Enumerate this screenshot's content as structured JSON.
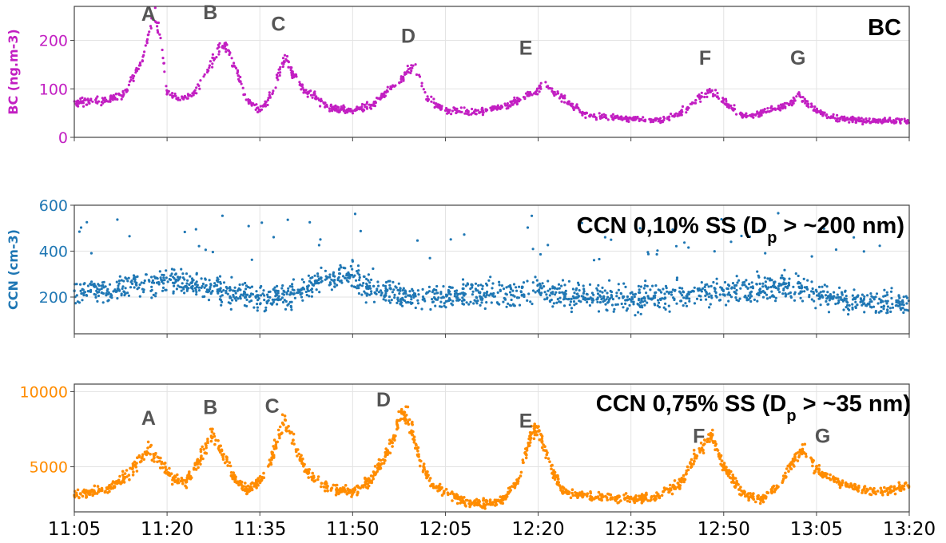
{
  "chart_data": [
    {
      "type": "scatter",
      "panel_label": "BC",
      "ylabel": "BC (ng.m-3)",
      "color": "#c21fc2",
      "ylim": [
        0,
        270
      ],
      "yticks": [
        0,
        100,
        200
      ],
      "xlim": [
        "11:05",
        "13:20"
      ],
      "baseline_points": [
        [
          "11:05",
          72
        ],
        [
          "11:10",
          75
        ],
        [
          "11:13",
          90
        ],
        [
          "11:16",
          160
        ],
        [
          "11:18",
          255
        ],
        [
          "11:19",
          200
        ],
        [
          "11:20",
          95
        ],
        [
          "11:22",
          80
        ],
        [
          "11:24",
          85
        ],
        [
          "11:25",
          100
        ],
        [
          "11:28",
          170
        ],
        [
          "11:29",
          195
        ],
        [
          "11:30",
          175
        ],
        [
          "11:33",
          75
        ],
        [
          "11:35",
          55
        ],
        [
          "11:37",
          90
        ],
        [
          "11:39",
          165
        ],
        [
          "11:40",
          140
        ],
        [
          "11:42",
          100
        ],
        [
          "11:46",
          62
        ],
        [
          "11:50",
          55
        ],
        [
          "11:53",
          65
        ],
        [
          "11:56",
          100
        ],
        [
          "11:59",
          135
        ],
        [
          "12:00",
          150
        ],
        [
          "12:02",
          80
        ],
        [
          "12:05",
          55
        ],
        [
          "12:10",
          52
        ],
        [
          "12:15",
          65
        ],
        [
          "12:19",
          90
        ],
        [
          "12:21",
          108
        ],
        [
          "12:24",
          80
        ],
        [
          "12:28",
          45
        ],
        [
          "12:35",
          38
        ],
        [
          "12:40",
          35
        ],
        [
          "12:43",
          50
        ],
        [
          "12:46",
          82
        ],
        [
          "12:48",
          98
        ],
        [
          "12:50",
          75
        ],
        [
          "12:53",
          45
        ],
        [
          "12:55",
          45
        ],
        [
          "12:58",
          60
        ],
        [
          "13:01",
          70
        ],
        [
          "13:02",
          90
        ],
        [
          "13:04",
          65
        ],
        [
          "13:07",
          42
        ],
        [
          "13:12",
          35
        ],
        [
          "13:18",
          33
        ]
      ],
      "annotations": [
        {
          "text": "A",
          "x": "11:17",
          "y": 240
        },
        {
          "text": "B",
          "x": "11:27",
          "y": 244
        },
        {
          "text": "C",
          "x": "11:38",
          "y": 220
        },
        {
          "text": "D",
          "x": "11:59",
          "y": 195
        },
        {
          "text": "E",
          "x": "12:18",
          "y": 170
        },
        {
          "text": "F",
          "x": "12:47",
          "y": 150
        },
        {
          "text": "G",
          "x": "13:02",
          "y": 150
        }
      ]
    },
    {
      "type": "scatter",
      "panel_label": "CCN 0,10% SS (D",
      "panel_label_sub": "p",
      "panel_label_end": " > ~200 nm)",
      "ylabel": "CCN (cm-3)",
      "color": "#1f77b4",
      "ylim": [
        40,
        600
      ],
      "yticks": [
        200,
        400,
        600
      ],
      "xlim": [
        "11:05",
        "13:20"
      ],
      "baseline_points": [
        [
          "11:05",
          230
        ],
        [
          "11:10",
          225
        ],
        [
          "11:15",
          250
        ],
        [
          "11:20",
          270
        ],
        [
          "11:25",
          250
        ],
        [
          "11:30",
          220
        ],
        [
          "11:35",
          195
        ],
        [
          "11:40",
          210
        ],
        [
          "11:45",
          270
        ],
        [
          "11:50",
          300
        ],
        [
          "11:52",
          250
        ],
        [
          "11:58",
          210
        ],
        [
          "12:05",
          205
        ],
        [
          "12:10",
          210
        ],
        [
          "12:15",
          210
        ],
        [
          "12:20",
          230
        ],
        [
          "12:25",
          210
        ],
        [
          "12:30",
          200
        ],
        [
          "12:35",
          190
        ],
        [
          "12:40",
          195
        ],
        [
          "12:45",
          215
        ],
        [
          "12:50",
          225
        ],
        [
          "12:55",
          235
        ],
        [
          "13:00",
          250
        ],
        [
          "13:05",
          215
        ],
        [
          "13:10",
          185
        ],
        [
          "13:15",
          180
        ],
        [
          "13:20",
          170
        ]
      ]
    },
    {
      "type": "scatter",
      "panel_label": "CCN 0,75% SS (D",
      "panel_label_sub": "p",
      "panel_label_end": " > ~35 nm)",
      "ylabel": "",
      "color": "#ff8c00",
      "ylim": [
        2000,
        10500
      ],
      "yticks": [
        5000,
        10000
      ],
      "xlim": [
        "11:05",
        "13:20"
      ],
      "baseline_points": [
        [
          "11:05",
          3200
        ],
        [
          "11:10",
          3400
        ],
        [
          "11:13",
          4200
        ],
        [
          "11:16",
          5600
        ],
        [
          "11:17",
          6300
        ],
        [
          "11:19",
          5200
        ],
        [
          "11:21",
          4200
        ],
        [
          "11:23",
          4000
        ],
        [
          "11:25",
          5200
        ],
        [
          "11:27",
          7200
        ],
        [
          "11:29",
          5800
        ],
        [
          "11:31",
          4200
        ],
        [
          "11:33",
          3400
        ],
        [
          "11:36",
          4500
        ],
        [
          "11:38",
          7000
        ],
        [
          "11:39",
          8200
        ],
        [
          "11:41",
          6000
        ],
        [
          "11:43",
          4500
        ],
        [
          "11:46",
          3600
        ],
        [
          "11:50",
          3300
        ],
        [
          "11:53",
          4200
        ],
        [
          "11:56",
          6200
        ],
        [
          "11:58",
          8800
        ],
        [
          "11:59",
          8200
        ],
        [
          "12:01",
          5200
        ],
        [
          "12:03",
          3800
        ],
        [
          "12:07",
          2900
        ],
        [
          "12:10",
          2500
        ],
        [
          "12:14",
          2700
        ],
        [
          "12:17",
          4200
        ],
        [
          "12:19",
          7500
        ],
        [
          "12:20",
          7600
        ],
        [
          "12:22",
          5000
        ],
        [
          "12:24",
          3400
        ],
        [
          "12:28",
          3000
        ],
        [
          "12:35",
          2900
        ],
        [
          "12:39",
          3000
        ],
        [
          "12:43",
          3900
        ],
        [
          "12:46",
          6000
        ],
        [
          "12:48",
          7200
        ],
        [
          "12:50",
          5000
        ],
        [
          "12:53",
          3200
        ],
        [
          "12:56",
          2800
        ],
        [
          "12:59",
          3800
        ],
        [
          "13:01",
          5200
        ],
        [
          "13:03",
          6200
        ],
        [
          "13:05",
          4800
        ],
        [
          "13:09",
          3800
        ],
        [
          "13:15",
          3300
        ],
        [
          "13:20",
          3700
        ]
      ],
      "annotations": [
        {
          "text": "A",
          "x": "11:17",
          "y": 7800
        },
        {
          "text": "B",
          "x": "11:27",
          "y": 8500
        },
        {
          "text": "C",
          "x": "11:37",
          "y": 8600
        },
        {
          "text": "D",
          "x": "11:55",
          "y": 9000
        },
        {
          "text": "E",
          "x": "12:18",
          "y": 7600
        },
        {
          "text": "F",
          "x": "12:46",
          "y": 6600
        },
        {
          "text": "G",
          "x": "13:06",
          "y": 6600
        }
      ]
    }
  ],
  "x_axis": {
    "tick_labels": [
      "11:05",
      "11:20",
      "11:35",
      "11:50",
      "12:05",
      "12:20",
      "12:35",
      "12:50",
      "13:05",
      "13:20"
    ],
    "grid": true
  }
}
